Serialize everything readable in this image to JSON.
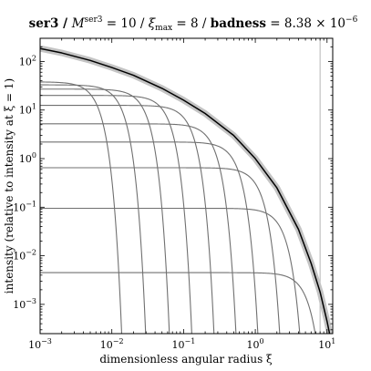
{
  "chart_data": {
    "type": "line",
    "title": {
      "prefix": "ser3 / ",
      "m_label": "M",
      "m_sup": "ser3",
      "m_value": " = 10 / ",
      "xi_label": "ξ",
      "xi_sub": "max",
      "xi_value": " = 8 / ",
      "badness_label": "badness",
      "badness_value": " = 8.38 × 10",
      "badness_exp": "−6"
    },
    "xlabel": "dimensionless angular radius ξ",
    "ylabel": "intensity (relative to intensity at ξ = 1)",
    "xscale": "log",
    "yscale": "log",
    "xlim": [
      0.001,
      12
    ],
    "ylim": [
      0.00025,
      300
    ],
    "xticks": [
      {
        "value": 0.001,
        "base": "10",
        "exp": "−3"
      },
      {
        "value": 0.01,
        "base": "10",
        "exp": "−2"
      },
      {
        "value": 0.1,
        "base": "10",
        "exp": "−1"
      },
      {
        "value": 1,
        "base": "10",
        "exp": "0"
      },
      {
        "value": 10,
        "base": "10",
        "exp": "1"
      }
    ],
    "yticks": [
      {
        "value": 0.001,
        "base": "10",
        "exp": "−3"
      },
      {
        "value": 0.01,
        "base": "10",
        "exp": "−2"
      },
      {
        "value": 0.1,
        "base": "10",
        "exp": "−1"
      },
      {
        "value": 1,
        "base": "10",
        "exp": "0"
      },
      {
        "value": 10,
        "base": "10",
        "exp": "1"
      },
      {
        "value": 100,
        "base": "10",
        "exp": "2"
      }
    ],
    "vertical_line_x": 8,
    "profile": {
      "x": [
        0.001,
        0.002,
        0.005,
        0.01,
        0.02,
        0.05,
        0.1,
        0.2,
        0.5,
        1,
        2,
        4,
        6,
        8,
        10,
        12
      ],
      "y": [
        185,
        150,
        105,
        75,
        52,
        28,
        16,
        8.5,
        3,
        1,
        0.25,
        0.035,
        0.007,
        0.0018,
        0.00045,
        0.00012
      ]
    },
    "components": [
      {
        "amplitude": 38,
        "scale": 0.006
      },
      {
        "amplitude": 33,
        "scale": 0.013
      },
      {
        "amplitude": 27,
        "scale": 0.028
      },
      {
        "amplitude": 20,
        "scale": 0.058
      },
      {
        "amplitude": 12.5,
        "scale": 0.12
      },
      {
        "amplitude": 5.2,
        "scale": 0.25
      },
      {
        "amplitude": 2.2,
        "scale": 0.52
      },
      {
        "amplitude": 0.65,
        "scale": 1.1
      },
      {
        "amplitude": 0.095,
        "scale": 2.3
      },
      {
        "amplitude": 0.0045,
        "scale": 4.8
      }
    ],
    "colors": {
      "profile": "#000000",
      "profile_band": "#c4c4c4",
      "components": "#707070",
      "vertical_line": "#b5b5b5"
    },
    "grid": false,
    "legend": "none"
  }
}
